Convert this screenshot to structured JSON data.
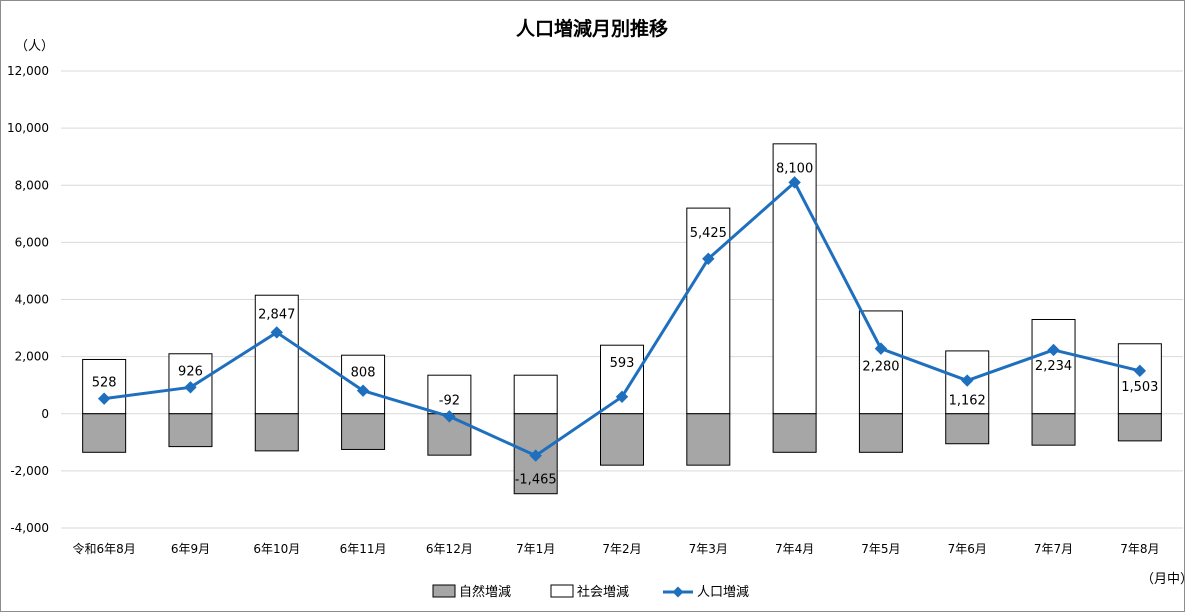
{
  "chart_data": {
    "type": "bar",
    "title": "人口増減月別推移",
    "unit_label": "（人）",
    "period_label": "（月中）",
    "categories": [
      "令和6年8月",
      "6年9月",
      "6年10月",
      "6年11月",
      "6年12月",
      "7年1月",
      "7年2月",
      "7年3月",
      "7年4月",
      "7年5月",
      "7年6月",
      "7年7月",
      "7年8月"
    ],
    "ylim": [
      -4000,
      12000
    ],
    "yticks": [
      -4000,
      -2000,
      0,
      2000,
      4000,
      6000,
      8000,
      10000,
      12000
    ],
    "ytick_labels": [
      "-4,000",
      "-2,000",
      "0",
      "2,000",
      "4,000",
      "6,000",
      "8,000",
      "10,000",
      "12,000"
    ],
    "grid": true,
    "legend_position": "bottom",
    "series": [
      {
        "name": "自然増減",
        "kind": "bar",
        "color": "#a6a6a6",
        "values": [
          -1350,
          -1150,
          -1300,
          -1250,
          -1450,
          -2800,
          -1800,
          -1800,
          -1350,
          -1350,
          -1050,
          -1100,
          -950
        ]
      },
      {
        "name": "社会増減",
        "kind": "bar",
        "color": "#ffffff",
        "values": [
          1900,
          2100,
          4150,
          2050,
          1350,
          1350,
          2400,
          7200,
          9450,
          3600,
          2200,
          3300,
          2450
        ]
      },
      {
        "name": "人口増減",
        "kind": "line",
        "color": "#1f6fbf",
        "values": [
          528,
          926,
          2847,
          808,
          -92,
          -1465,
          593,
          5425,
          8100,
          2280,
          1162,
          2234,
          1503
        ],
        "labels": [
          "528",
          "926",
          "2,847",
          "808",
          "-92",
          "-1,465",
          "593",
          "5,425",
          "8,100",
          "2,280",
          "1,162",
          "2,234",
          "1,503"
        ]
      }
    ]
  }
}
